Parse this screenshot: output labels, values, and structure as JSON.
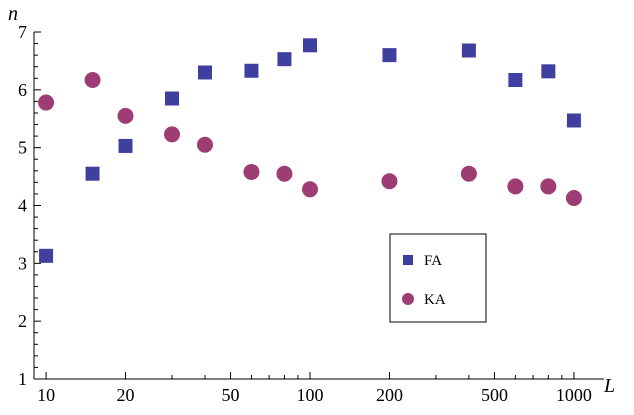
{
  "chart_data": {
    "type": "scatter",
    "xlabel": "L",
    "ylabel": "n",
    "xscale": "log",
    "xlim": [
      9,
      1300
    ],
    "ylim": [
      1,
      7
    ],
    "xticks": [
      10,
      20,
      50,
      100,
      200,
      500,
      1000
    ],
    "xtick_labels": [
      "10",
      "20",
      "50",
      "100",
      "200",
      "500",
      "1000"
    ],
    "yticks": [
      1,
      2,
      3,
      4,
      5,
      6,
      7
    ],
    "ytick_labels": [
      "1",
      "2",
      "3",
      "4",
      "5",
      "6",
      "7"
    ],
    "grid": false,
    "legend_position": "center-right",
    "series": [
      {
        "name": "FA",
        "marker": "square",
        "color": "#3f3f9f",
        "x": [
          10,
          15,
          20,
          30,
          40,
          60,
          80,
          100,
          200,
          400,
          600,
          800,
          1000
        ],
        "y": [
          3.13,
          4.55,
          5.03,
          5.85,
          6.3,
          6.33,
          6.53,
          6.77,
          6.6,
          6.68,
          6.17,
          6.32,
          5.47
        ]
      },
      {
        "name": "KA",
        "marker": "circle",
        "color": "#9e3d74",
        "x": [
          10,
          15,
          20,
          30,
          40,
          60,
          80,
          100,
          200,
          400,
          600,
          800,
          1000
        ],
        "y": [
          5.78,
          6.17,
          5.55,
          5.23,
          5.05,
          4.58,
          4.55,
          4.28,
          4.42,
          4.55,
          4.33,
          4.33,
          4.13
        ]
      }
    ]
  }
}
